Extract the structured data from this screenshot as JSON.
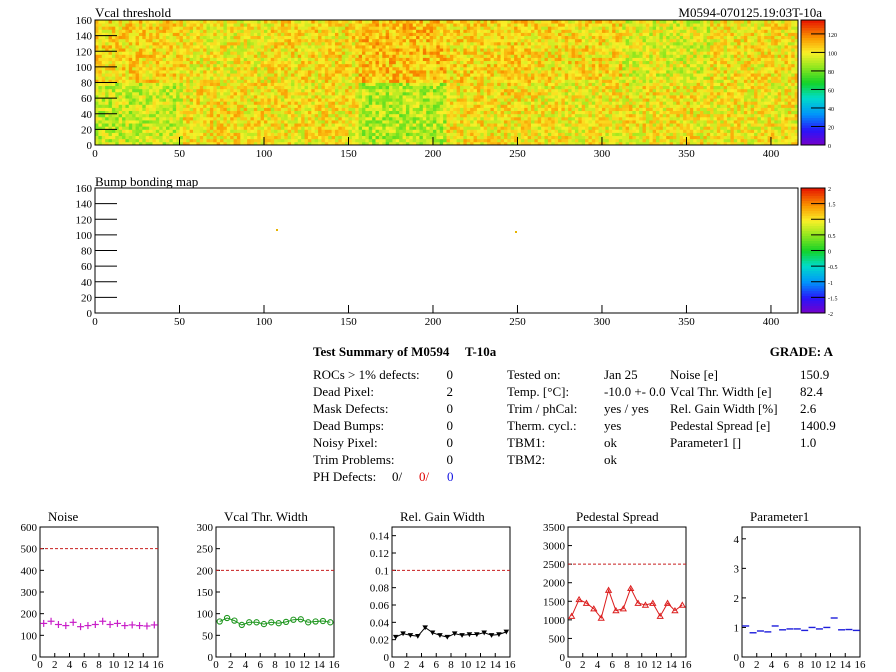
{
  "colors": {
    "dashed_ref": "#c81e1e"
  },
  "map1": {
    "title": "Vcal threshold",
    "module_label": "M0594-070125.19:03T-10a",
    "x_ticks": [
      "0",
      "50",
      "100",
      "150",
      "200",
      "250",
      "300",
      "350",
      "400"
    ],
    "y_ticks": [
      "0",
      "20",
      "40",
      "60",
      "80",
      "100",
      "120",
      "140",
      "160"
    ],
    "z_ticks": [
      "0",
      "20",
      "40",
      "60",
      "80",
      "100",
      "120"
    ]
  },
  "map2": {
    "title": "Bump bonding map",
    "x_ticks": [
      "0",
      "50",
      "100",
      "150",
      "200",
      "250",
      "300",
      "350",
      "400"
    ],
    "y_ticks": [
      "0",
      "20",
      "40",
      "60",
      "80",
      "100",
      "120",
      "140",
      "160"
    ],
    "z_ticks": [
      "-2",
      "-1.5",
      "-1",
      "-0.5",
      "0",
      "0.5",
      "1",
      "1.5",
      "2"
    ]
  },
  "summary": {
    "title": "Test Summary of M0594",
    "run": "T-10a",
    "grade": "GRADE:  A",
    "col1": [
      {
        "label": "ROCs > 1% defects:",
        "value": "0"
      },
      {
        "label": "Dead Pixel:",
        "value": "2"
      },
      {
        "label": "Mask Defects:",
        "value": "0"
      },
      {
        "label": "Dead Bumps:",
        "value": "0"
      },
      {
        "label": "Noisy Pixel:",
        "value": "0"
      },
      {
        "label": "Trim Problems:",
        "value": "0"
      }
    ],
    "ph_defects": {
      "label": "PH Defects:",
      "v1": "0/",
      "v2": "0/",
      "v3": "0"
    },
    "col2": [
      {
        "label": "Tested on:",
        "value": "Jan 25"
      },
      {
        "label": "Temp. [°C]:",
        "value": "-10.0 +- 0.0"
      },
      {
        "label": "Trim / phCal:",
        "value": "yes / yes"
      },
      {
        "label": "Therm. cycl.:",
        "value": "yes"
      },
      {
        "label": "TBM1:",
        "value": "ok"
      },
      {
        "label": "TBM2:",
        "value": "ok"
      }
    ],
    "col3": [
      {
        "label": "Noise [e]",
        "value": "150.9"
      },
      {
        "label": "Vcal Thr. Width [e]",
        "value": "82.4"
      },
      {
        "label": "Rel. Gain Width [%]",
        "value": "2.6"
      },
      {
        "label": "Pedestal Spread [e]",
        "value": "1400.9"
      },
      {
        "label": "Parameter1 []",
        "value": "1.0"
      }
    ]
  },
  "chart_data": [
    {
      "type": "heatmap",
      "title": "Vcal threshold",
      "xlim": [
        0,
        416
      ],
      "ylim": [
        0,
        160
      ],
      "zlim": [
        0,
        135
      ],
      "x_ticks": [
        0,
        50,
        100,
        150,
        200,
        250,
        300,
        350,
        400
      ],
      "y_ticks": [
        0,
        20,
        40,
        60,
        80,
        100,
        120,
        140,
        160
      ],
      "roc_blocks_bottom_row": [
        92,
        102,
        101,
        89,
        102,
        100,
        101,
        100
      ],
      "roc_blocks_top_row": [
        104,
        100,
        103,
        108,
        104,
        103,
        96,
        101
      ]
    },
    {
      "type": "heatmap",
      "title": "Bump bonding map",
      "xlim": [
        0,
        416
      ],
      "ylim": [
        0,
        160
      ],
      "zlim": [
        -2,
        2
      ],
      "x_ticks": [
        0,
        50,
        100,
        150,
        200,
        250,
        300,
        350,
        400
      ],
      "y_ticks": [
        0,
        20,
        40,
        60,
        80,
        100,
        120,
        140,
        160
      ]
    },
    {
      "type": "scatter",
      "title": "Noise",
      "xlim": [
        0,
        16
      ],
      "ylim": [
        0,
        600
      ],
      "x_ticks": [
        "0",
        "2",
        "4",
        "6",
        "8",
        "10",
        "12",
        "14",
        "16"
      ],
      "y_ticks": [
        "0",
        "100",
        "200",
        "300",
        "400",
        "500",
        "600"
      ],
      "reference": 500,
      "color": "#c81ec8",
      "marker": "plus",
      "x": [
        0.5,
        1.5,
        2.5,
        3.5,
        4.5,
        5.5,
        6.5,
        7.5,
        8.5,
        9.5,
        10.5,
        11.5,
        12.5,
        13.5,
        14.5,
        15.5
      ],
      "values": [
        155,
        165,
        150,
        145,
        160,
        140,
        145,
        150,
        165,
        150,
        155,
        145,
        148,
        145,
        143,
        148
      ]
    },
    {
      "type": "line",
      "title": "Vcal Thr. Width",
      "xlim": [
        0,
        16
      ],
      "ylim": [
        0,
        300
      ],
      "x_ticks": [
        "0",
        "2",
        "4",
        "6",
        "8",
        "10",
        "12",
        "14",
        "16"
      ],
      "y_ticks": [
        "0",
        "50",
        "100",
        "150",
        "200",
        "250",
        "300"
      ],
      "reference": 200,
      "color": "#1e961e",
      "marker": "circle",
      "x": [
        0.5,
        1.5,
        2.5,
        3.5,
        4.5,
        5.5,
        6.5,
        7.5,
        8.5,
        9.5,
        10.5,
        11.5,
        12.5,
        13.5,
        14.5,
        15.5
      ],
      "values": [
        82,
        90,
        84,
        74,
        80,
        80,
        76,
        80,
        78,
        81,
        86,
        87,
        80,
        82,
        83,
        80
      ]
    },
    {
      "type": "line",
      "title": "Rel. Gain Width",
      "xlim": [
        0,
        16
      ],
      "ylim": [
        0,
        0.15
      ],
      "x_ticks": [
        "0",
        "2",
        "4",
        "6",
        "8",
        "10",
        "12",
        "14",
        "16"
      ],
      "y_ticks": [
        "0",
        "0.02",
        "0.04",
        "0.06",
        "0.08",
        "0.1",
        "0.12",
        "0.14"
      ],
      "reference": 0.1,
      "color": "#000000",
      "marker": "triangle-down",
      "x": [
        0.5,
        1.5,
        2.5,
        3.5,
        4.5,
        5.5,
        6.5,
        7.5,
        8.5,
        9.5,
        10.5,
        11.5,
        12.5,
        13.5,
        14.5,
        15.5
      ],
      "values": [
        0.023,
        0.027,
        0.025,
        0.024,
        0.034,
        0.028,
        0.025,
        0.023,
        0.027,
        0.025,
        0.026,
        0.026,
        0.028,
        0.025,
        0.026,
        0.029
      ]
    },
    {
      "type": "line",
      "title": "Pedestal Spread",
      "xlim": [
        0,
        16
      ],
      "ylim": [
        0,
        3500
      ],
      "x_ticks": [
        "0",
        "2",
        "4",
        "6",
        "8",
        "10",
        "12",
        "14",
        "16"
      ],
      "y_ticks": [
        "0",
        "500",
        "1000",
        "1500",
        "2000",
        "2500",
        "3000",
        "3500"
      ],
      "reference": 2500,
      "color": "#dc1e1e",
      "marker": "triangle-up",
      "x": [
        0.5,
        1.5,
        2.5,
        3.5,
        4.5,
        5.5,
        6.5,
        7.5,
        8.5,
        9.5,
        10.5,
        11.5,
        12.5,
        13.5,
        14.5,
        15.5
      ],
      "values": [
        1100,
        1550,
        1450,
        1300,
        1050,
        1800,
        1250,
        1300,
        1850,
        1450,
        1400,
        1450,
        1100,
        1450,
        1250,
        1400
      ]
    },
    {
      "type": "scatter",
      "title": "Parameter1",
      "xlim": [
        0,
        16
      ],
      "ylim": [
        0,
        4.4
      ],
      "x_ticks": [
        "0",
        "2",
        "4",
        "6",
        "8",
        "10",
        "12",
        "14",
        "16"
      ],
      "y_ticks": [
        "0",
        "1",
        "2",
        "3",
        "4"
      ],
      "color": "#1e1edc",
      "marker": "hbar",
      "x": [
        0.5,
        1.5,
        2.5,
        3.5,
        4.5,
        5.5,
        6.5,
        7.5,
        8.5,
        9.5,
        10.5,
        11.5,
        12.5,
        13.5,
        14.5,
        15.5
      ],
      "values": [
        1.05,
        0.82,
        0.88,
        0.85,
        1.05,
        0.92,
        0.95,
        0.95,
        0.9,
        1.0,
        0.95,
        1.0,
        1.32,
        0.92,
        0.93,
        0.9
      ]
    }
  ]
}
